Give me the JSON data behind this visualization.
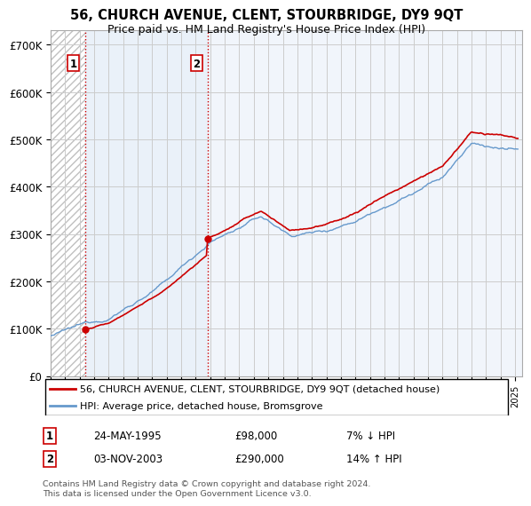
{
  "title": "56, CHURCH AVENUE, CLENT, STOURBRIDGE, DY9 9QT",
  "subtitle": "Price paid vs. HM Land Registry's House Price Index (HPI)",
  "ylabel_ticks": [
    "£0",
    "£100K",
    "£200K",
    "£300K",
    "£400K",
    "£500K",
    "£600K",
    "£700K"
  ],
  "ytick_vals": [
    0,
    100000,
    200000,
    300000,
    400000,
    500000,
    600000,
    700000
  ],
  "ylim": [
    0,
    730000
  ],
  "xlim_start": 1993.0,
  "xlim_end": 2025.5,
  "sale1_date": 1995.38,
  "sale1_price": 98000,
  "sale1_label": "1",
  "sale1_text": "24-MAY-1995",
  "sale1_price_str": "£98,000",
  "sale1_hpi": "7% ↓ HPI",
  "sale2_date": 2003.84,
  "sale2_price": 290000,
  "sale2_label": "2",
  "sale2_text": "03-NOV-2003",
  "sale2_price_str": "£290,000",
  "sale2_hpi": "14% ↑ HPI",
  "line1_label": "56, CHURCH AVENUE, CLENT, STOURBRIDGE, DY9 9QT (detached house)",
  "line2_label": "HPI: Average price, detached house, Bromsgrove",
  "footer": "Contains HM Land Registry data © Crown copyright and database right 2024.\nThis data is licensed under the Open Government Licence v3.0.",
  "sold_color": "#cc0000",
  "hpi_color": "#6699cc",
  "grid_color": "#cccccc"
}
